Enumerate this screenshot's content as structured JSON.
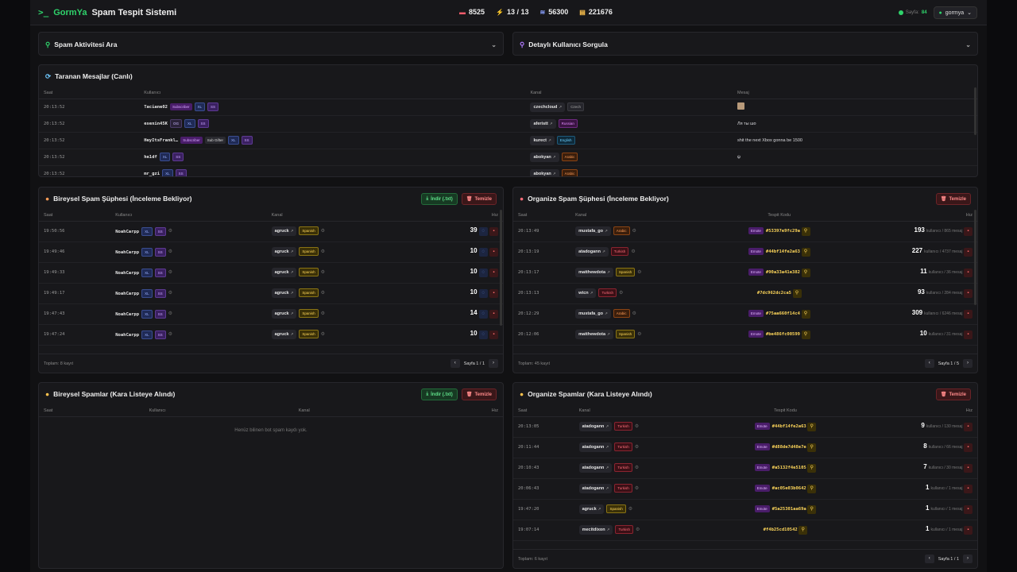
{
  "brand": {
    "logo_glyph": ">_",
    "name_accent": "GormYa",
    "name_rest": "Spam Tespit Sistemi"
  },
  "stats": [
    {
      "icon": "video-icon",
      "glyph": "▬",
      "value": "8525",
      "color": "#ff5c6c"
    },
    {
      "icon": "bolt-icon",
      "glyph": "⚡",
      "value": "13 / 13",
      "color": "#8aa0ff"
    },
    {
      "icon": "feed-icon",
      "glyph": "≋",
      "value": "56300",
      "color": "#8aa0ff"
    },
    {
      "icon": "database-icon",
      "glyph": "▤",
      "value": "221676",
      "color": "#ffc34d"
    }
  ],
  "topright": {
    "sayfa_label": "Sayfa:",
    "sayfa_value": "84",
    "user": "gormya"
  },
  "accordions": {
    "spam_search": "Spam Aktivitesi Ara",
    "user_query": "Detaylı Kullanıcı Sorgula"
  },
  "live": {
    "title": "Taranan Mesajlar (Canlı)",
    "headers": [
      "Saat",
      "Kullanıcı",
      "Kanal",
      "Mesaj"
    ],
    "rows": [
      {
        "time": "20:13:52",
        "user": "Taciane02",
        "badges": [
          "Subscriber",
          "XL",
          "SS"
        ],
        "channel": "czechcloud",
        "lang": "Czech",
        "lang_cls": "l-cz",
        "msg": ""
      },
      {
        "time": "20:13:52",
        "user": "esenin45K",
        "badges": [
          "OG",
          "XL",
          "SS"
        ],
        "channel": "aferistt",
        "lang": "Russian",
        "lang_cls": "l-ru",
        "msg": "Ля ты шо"
      },
      {
        "time": "20:13:52",
        "user": "HeyItsFrankl…",
        "badges": [
          "Subscriber",
          "Sub Gifter",
          "XL",
          "SS"
        ],
        "channel": "kurect",
        "lang": "English",
        "lang_cls": "l-en",
        "msg": "shit the next Xbox gonna be 1500"
      },
      {
        "time": "20:13:52",
        "user": "he1df",
        "badges": [
          "XL",
          "SS"
        ],
        "channel": "abokyan",
        "lang": "Arabic",
        "lang_cls": "l-ar",
        "msg": "ψ"
      },
      {
        "time": "20:13:52",
        "user": "mr_gzi",
        "badges": [
          "XL",
          "SS"
        ],
        "channel": "abokyan",
        "lang": "Arabic",
        "lang_cls": "l-ar",
        "msg": ""
      }
    ]
  },
  "individual_suspect": {
    "title": "Bireysel Spam Şüphesi (İnceleme Bekliyor)",
    "download": "İndir (.txt)",
    "clear": "Temizle",
    "headers": [
      "Saat",
      "Kullanıcı",
      "Kanal",
      "Hız"
    ],
    "rows": [
      {
        "time": "19:50:56",
        "user": "NoahCarpp",
        "channel": "agruck",
        "lang": "Spanish",
        "speed": "39"
      },
      {
        "time": "19:49:46",
        "user": "NoahCarpp",
        "channel": "agruck",
        "lang": "Spanish",
        "speed": "10"
      },
      {
        "time": "19:49:33",
        "user": "NoahCarpp",
        "channel": "agruck",
        "lang": "Spanish",
        "speed": "10"
      },
      {
        "time": "19:49:17",
        "user": "NoahCarpp",
        "channel": "agruck",
        "lang": "Spanish",
        "speed": "10"
      },
      {
        "time": "19:47:43",
        "user": "NoahCarpp",
        "channel": "agruck",
        "lang": "Spanish",
        "speed": "14"
      },
      {
        "time": "19:47:24",
        "user": "NoahCarpp",
        "channel": "agruck",
        "lang": "Spanish",
        "speed": "10"
      }
    ],
    "total": "Toplam: 8 kayıt",
    "page": "Sayfa 1 / 1"
  },
  "organized_suspect": {
    "title": "Organize Spam Şüphesi (İnceleme Bekliyor)",
    "clear": "Temizle",
    "headers": [
      "Saat",
      "Kanal",
      "Tespit Kodu",
      "Hız"
    ],
    "rows": [
      {
        "time": "20:13:49",
        "channel": "mustafa_go",
        "lang": "Arabic",
        "lang_cls": "l-ar",
        "emote": true,
        "code": "#53397e9fc29a",
        "count": "193",
        "sub": "kullanıcı / 865 mesaj"
      },
      {
        "time": "20:13:19",
        "channel": "atadogann",
        "lang": "Turkish",
        "lang_cls": "l-tr",
        "emote": true,
        "code": "#44bf14fe2a63",
        "count": "227",
        "sub": "kullanıcı / 4737 mesaj"
      },
      {
        "time": "20:13:17",
        "channel": "matthewdota",
        "lang": "Spanish",
        "lang_cls": "l-es",
        "emote": true,
        "code": "#90a33a41e382",
        "count": "11",
        "sub": "kullanıcı / 36 mesaj"
      },
      {
        "time": "20:13:13",
        "channel": "wtcn",
        "lang": "Turkish",
        "lang_cls": "l-tr",
        "emote": false,
        "code": "#7dc962dc2ca5",
        "count": "93",
        "sub": "kullanıcı / 284 mesaj"
      },
      {
        "time": "20:12:29",
        "channel": "mustafa_go",
        "lang": "Arabic",
        "lang_cls": "l-ar",
        "emote": true,
        "code": "#75aa660f14c4",
        "count": "309",
        "sub": "kullanıcı / 6246 mesaj"
      },
      {
        "time": "20:12:06",
        "channel": "matthewdota",
        "lang": "Spanish",
        "lang_cls": "l-es",
        "emote": true,
        "code": "#be486fc00599",
        "count": "10",
        "sub": "kullanıcı / 31 mesaj"
      }
    ],
    "total": "Toplam: 45 kayıt",
    "page": "Sayfa 1 / 5"
  },
  "individual_black": {
    "title": "Bireysel Spamlar (Kara Listeye Alındı)",
    "download": "İndir (.txt)",
    "clear": "Temizle",
    "headers": [
      "Saat",
      "Kullanıcı",
      "Kanal",
      "Hız"
    ],
    "empty": "Henüz bilinen bot spam kaydı yok."
  },
  "organized_black": {
    "title": "Organize Spamlar (Kara Listeye Alındı)",
    "clear": "Temizle",
    "headers": [
      "Saat",
      "Kanal",
      "Tespit Kodu",
      "Hız"
    ],
    "rows": [
      {
        "time": "20:13:05",
        "channel": "atadogann",
        "lang": "Turkish",
        "lang_cls": "l-tr",
        "emote": true,
        "code": "#44bf14fe2a63",
        "count": "9",
        "sub": "kullanıcı / 130 mesaj"
      },
      {
        "time": "20:11:44",
        "channel": "atadogann",
        "lang": "Turkish",
        "lang_cls": "l-tr",
        "emote": true,
        "code": "#d88de7d48e7e",
        "count": "8",
        "sub": "kullanıcı / 66 mesaj"
      },
      {
        "time": "20:10:43",
        "channel": "atadogann",
        "lang": "Turkish",
        "lang_cls": "l-tr",
        "emote": true,
        "code": "#a5132f4e5105",
        "count": "7",
        "sub": "kullanıcı / 30 mesaj"
      },
      {
        "time": "20:06:43",
        "channel": "atadogann",
        "lang": "Turkish",
        "lang_cls": "l-tr",
        "emote": true,
        "code": "#ac05e03b0642",
        "count": "1",
        "sub": "kullanıcı / 1 mesaj"
      },
      {
        "time": "19:47:20",
        "channel": "agruck",
        "lang": "Spanish",
        "lang_cls": "l-es",
        "emote": true,
        "code": "#5a25301aa69a",
        "count": "1",
        "sub": "kullanıcı / 1 mesaj"
      },
      {
        "time": "19:07:14",
        "channel": "mecitdixon",
        "lang": "Turkish",
        "lang_cls": "l-tr",
        "emote": false,
        "code": "#f4b25cd10542",
        "count": "1",
        "sub": "kullanıcı / 1 mesaj"
      }
    ],
    "total": "Toplam: 6 kayıt",
    "page": "Sayfa 1 / 1"
  }
}
